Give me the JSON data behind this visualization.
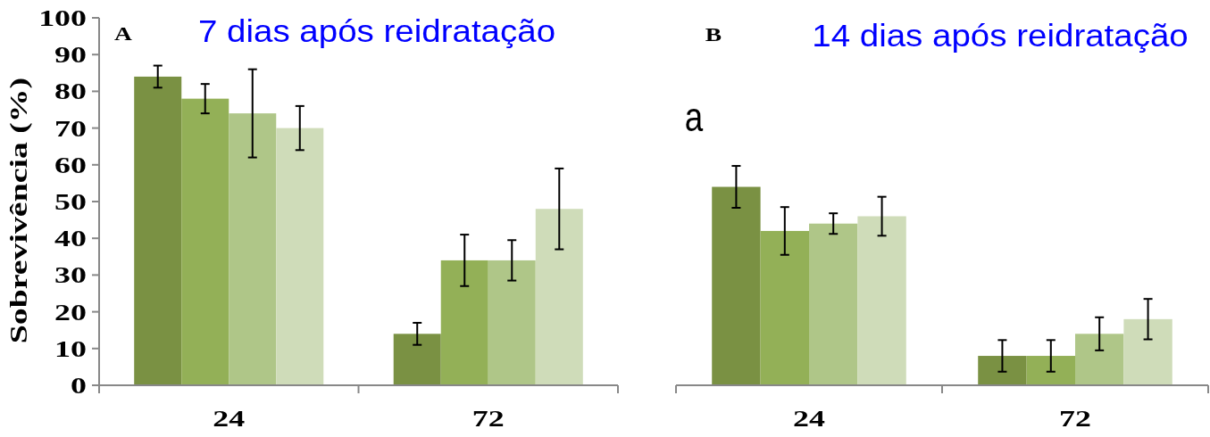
{
  "chart_data": [
    {
      "type": "bar",
      "title": "7 dias após reidratação",
      "ylabel": "Sobrevivência (%)",
      "categories": [
        "24",
        "72"
      ],
      "series": [
        {
          "color": "#7a9143",
          "values": [
            84,
            14
          ],
          "errors": [
            3,
            3
          ]
        },
        {
          "color": "#93b057",
          "values": [
            78,
            34
          ],
          "errors": [
            4,
            7
          ]
        },
        {
          "color": "#afc688",
          "values": [
            74,
            34
          ],
          "errors": [
            12,
            5.5
          ]
        },
        {
          "color": "#cfdcb9",
          "values": [
            70,
            48
          ],
          "errors": [
            6,
            11
          ]
        }
      ],
      "ylim": [
        0,
        100
      ],
      "yticks": [
        0,
        10,
        20,
        30,
        40,
        50,
        60,
        70,
        80,
        90,
        100
      ],
      "annotations": [
        "A"
      ]
    },
    {
      "type": "bar",
      "title": "14 dias após reidratação",
      "categories": [
        "24",
        "72"
      ],
      "series": [
        {
          "color": "#7a9143",
          "values": [
            54,
            8
          ],
          "errors": [
            5.7,
            4.3
          ]
        },
        {
          "color": "#93b057",
          "values": [
            42,
            8
          ],
          "errors": [
            6.5,
            4.3
          ]
        },
        {
          "color": "#afc688",
          "values": [
            44,
            14
          ],
          "errors": [
            2.8,
            4.5
          ]
        },
        {
          "color": "#cfdcb9",
          "values": [
            46,
            18
          ],
          "errors": [
            5.3,
            5.5
          ]
        }
      ],
      "ylim": [
        0,
        100
      ],
      "tick_labels": "x",
      "annotations": [
        "B",
        "a"
      ]
    }
  ]
}
